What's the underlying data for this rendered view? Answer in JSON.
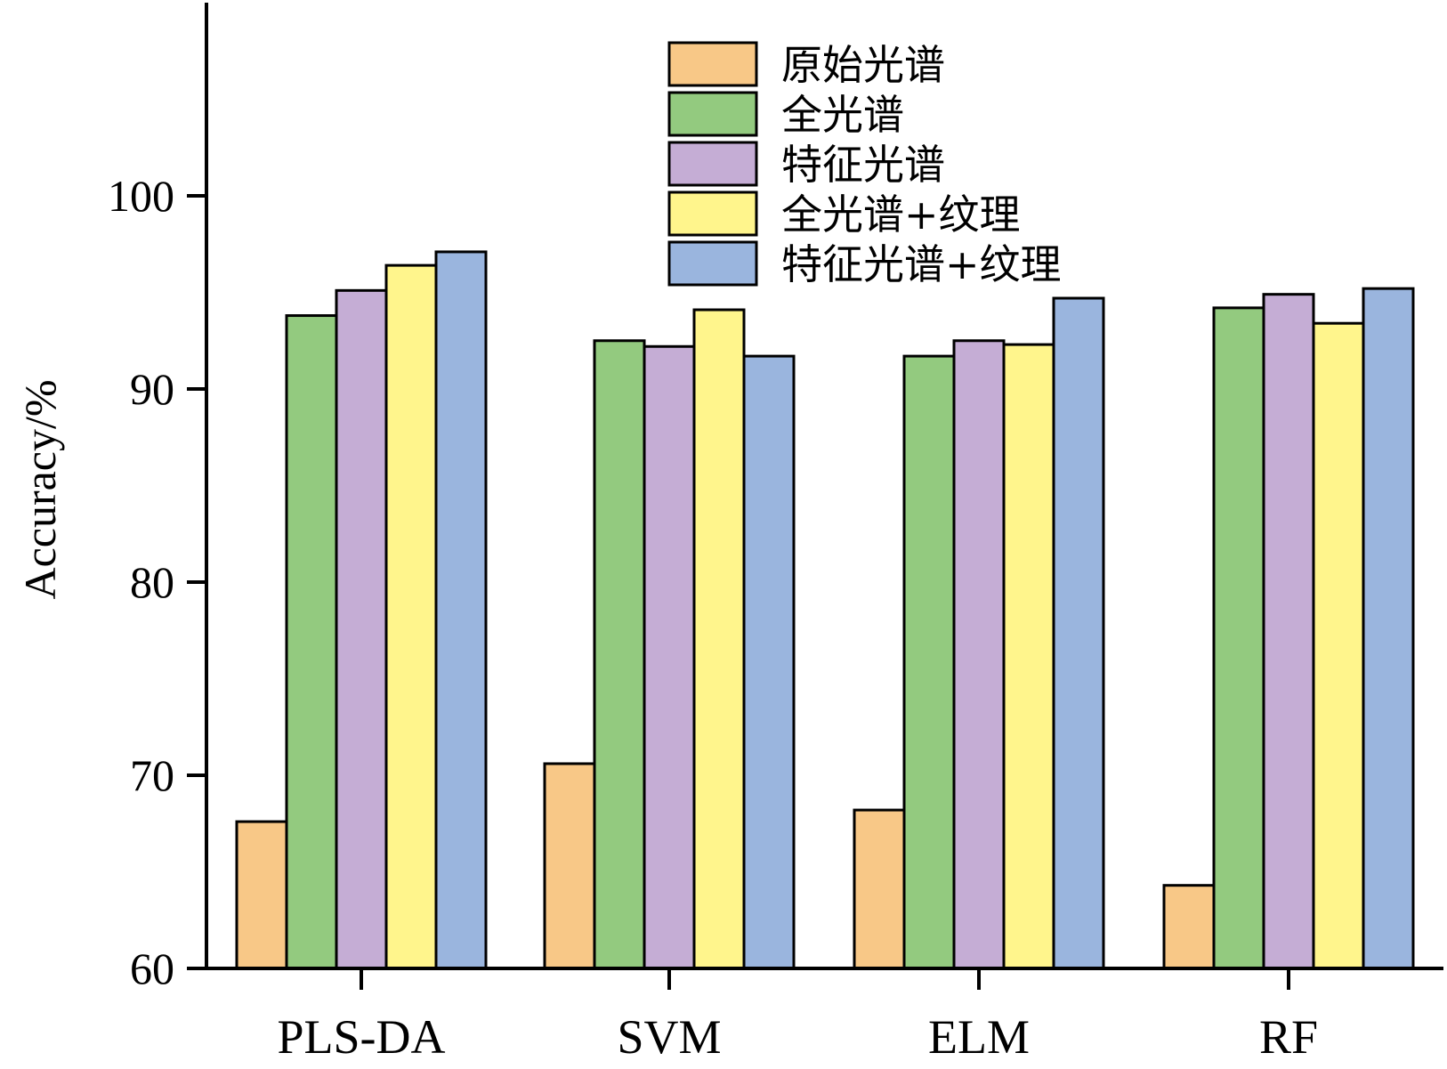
{
  "chart_data": {
    "type": "bar",
    "title": "",
    "xlabel": "",
    "ylabel": "Accuracy/%",
    "ylim": [
      60,
      110
    ],
    "yticks": [
      60,
      70,
      80,
      90,
      100
    ],
    "grid": false,
    "legend_position": "top-center",
    "categories": [
      "PLS-DA",
      "SVM",
      "ELM",
      "RF"
    ],
    "series": [
      {
        "name": "原始光谱",
        "color": "#F8C887",
        "values": [
          67.6,
          70.6,
          68.2,
          64.3
        ]
      },
      {
        "name": "全光谱",
        "color": "#93CA7F",
        "values": [
          93.8,
          92.5,
          91.7,
          94.2
        ]
      },
      {
        "name": "特征光谱",
        "color": "#C5ADD5",
        "values": [
          95.1,
          92.2,
          92.5,
          94.9
        ]
      },
      {
        "name": "全光谱+纹理",
        "color": "#FFF58C",
        "values": [
          96.4,
          94.1,
          92.3,
          93.4
        ]
      },
      {
        "name": "特征光谱+纹理",
        "color": "#9AB5DE",
        "values": [
          97.1,
          91.7,
          94.7,
          95.2
        ]
      }
    ]
  }
}
